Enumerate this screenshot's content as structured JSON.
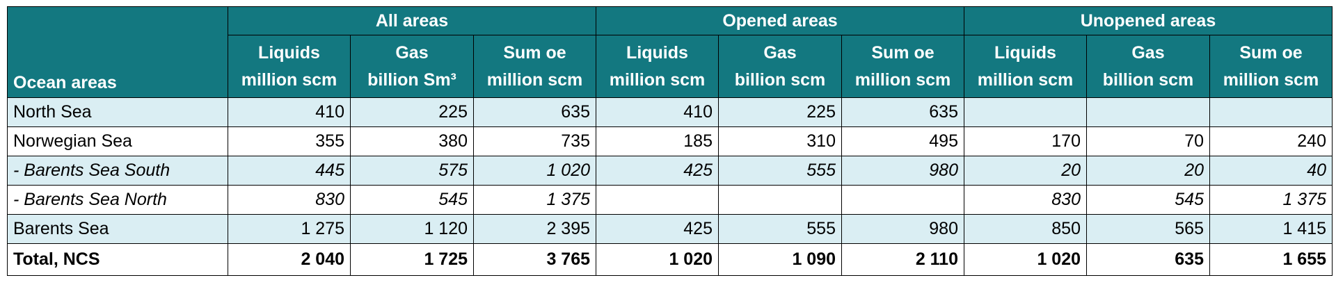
{
  "table": {
    "corner": "Ocean areas",
    "groups": [
      "All areas",
      "Opened areas",
      "Unopened areas"
    ],
    "columns": [
      [
        "Liquids",
        "million scm"
      ],
      [
        "Gas",
        "billion Sm³"
      ],
      [
        "Sum oe",
        "million scm"
      ],
      [
        "Liquids",
        "million scm"
      ],
      [
        "Gas",
        "billion scm"
      ],
      [
        "Sum oe",
        "million scm"
      ],
      [
        "Liquids",
        "million scm"
      ],
      [
        "Gas",
        "billion scm"
      ],
      [
        "Sum oe",
        "million scm"
      ]
    ],
    "rows": [
      [
        "North Sea",
        "410",
        "225",
        "635",
        "410",
        "225",
        "635",
        null,
        null,
        null
      ],
      [
        "Norwegian Sea",
        "355",
        "380",
        "735",
        "185",
        "310",
        "495",
        "170",
        "70",
        "240"
      ],
      [
        "- Barents Sea South",
        "445",
        "575",
        "1 020",
        "425",
        "555",
        "980",
        "20",
        "20",
        "40"
      ],
      [
        "- Barents Sea North",
        "830",
        "545",
        "1 375",
        null,
        null,
        null,
        "830",
        "545",
        "1 375"
      ],
      [
        "Barents Sea",
        "1 275",
        "1 120",
        "2 395",
        "425",
        "555",
        "980",
        "850",
        "565",
        "1 415"
      ],
      [
        "Total, NCS",
        "2 040",
        "1 725",
        "3 765",
        "1 020",
        "1 090",
        "2 110",
        "1 020",
        "635",
        "1 655"
      ]
    ]
  }
}
